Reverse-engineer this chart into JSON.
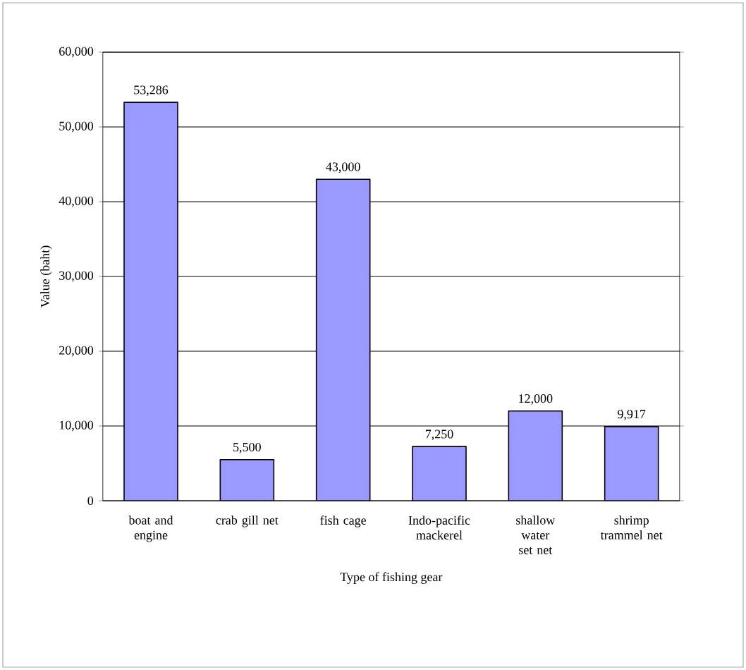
{
  "chart_data": {
    "type": "bar",
    "xlabel": "Type of fishing gear",
    "ylabel": "Value (baht)",
    "categories": [
      "boat and engine",
      "crab gill net",
      "fish cage",
      "Indo-pacific mackerel",
      "shallow water set net",
      "shrimp trammel net"
    ],
    "values": [
      53286,
      5500,
      43000,
      7250,
      12000,
      9917
    ],
    "value_labels": [
      "53,286",
      "5,500",
      "43,000",
      "7,250",
      "12,000",
      "9,917"
    ],
    "color": "#9999ff",
    "ylim": [
      0,
      60000
    ],
    "yticks": [
      {
        "value": 0,
        "label": "0"
      },
      {
        "value": 10000,
        "label": "10,000"
      },
      {
        "value": 20000,
        "label": "20,000"
      },
      {
        "value": 30000,
        "label": "30,000"
      },
      {
        "value": 40000,
        "label": "40,000"
      },
      {
        "value": 50000,
        "label": "50,000"
      },
      {
        "value": 60000,
        "label": "60,000"
      }
    ],
    "grid": "y"
  }
}
